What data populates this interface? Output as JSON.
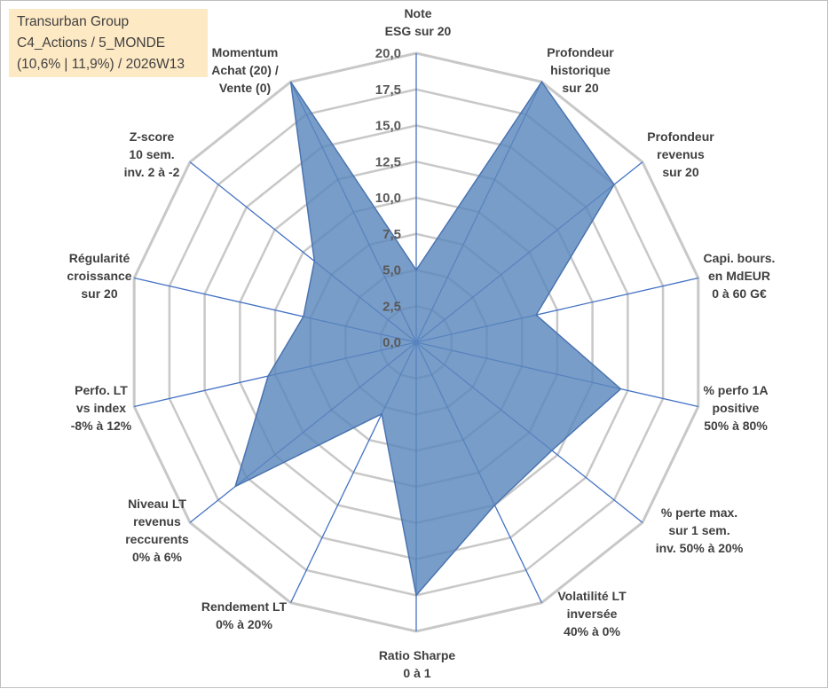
{
  "info_box": {
    "line1": "Transurban Group",
    "line2": "C4_Actions / 5_MONDE",
    "line3": "(10,6% | 11,9%) / 2026W13"
  },
  "colors": {
    "grid": "#c8c8c8",
    "spoke": "#4472c4",
    "area_fill": "#5b87bd",
    "area_stroke": "#4a74b0",
    "text": "#404040",
    "info_bg": "#fde9c4"
  },
  "chart_data": {
    "type": "radar",
    "title": "",
    "range": [
      0,
      20
    ],
    "tick_values": [
      0,
      2.5,
      5,
      7.5,
      10,
      12.5,
      15,
      17.5,
      20
    ],
    "tick_labels": [
      "0,0",
      "2,5",
      "5,0",
      "7,5",
      "10,0",
      "12,5",
      "15,0",
      "17,5",
      "20,0"
    ],
    "categories": [
      [
        "Note",
        "ESG sur 20"
      ],
      [
        "Profondeur",
        "historique",
        "sur 20"
      ],
      [
        "Profondeur",
        "revenus",
        "sur 20"
      ],
      [
        "Capi. bours.",
        "en MdEUR",
        "0 à 60 G€"
      ],
      [
        "% perfo 1A",
        "positive",
        "50% à 80%"
      ],
      [
        "% perte max.",
        "sur 1 sem.",
        "inv. 50% à 20%"
      ],
      [
        "Volatilité LT",
        "inversée",
        "40% à 0%"
      ],
      [
        "Ratio Sharpe",
        "0 à 1"
      ],
      [
        "Rendement LT",
        "0% à 20%"
      ],
      [
        "Niveau LT",
        "revenus",
        "reccurents",
        "0% à 6%"
      ],
      [
        "Perfo. LT",
        "vs index",
        "-8% à 12%"
      ],
      [
        "Régularité",
        "croissance",
        "sur 20"
      ],
      [
        "Z-score",
        "10 sem.",
        "inv. 2 à -2"
      ],
      [
        "Momentum",
        "Achat (20) /",
        "Vente (0)"
      ]
    ],
    "series": [
      {
        "name": "Transurban Group",
        "values": [
          5.0,
          20.0,
          17.5,
          8.5,
          14.5,
          12.0,
          12.5,
          17.5,
          5.5,
          16.0,
          10.5,
          8.0,
          9.0,
          20.0
        ]
      }
    ]
  }
}
